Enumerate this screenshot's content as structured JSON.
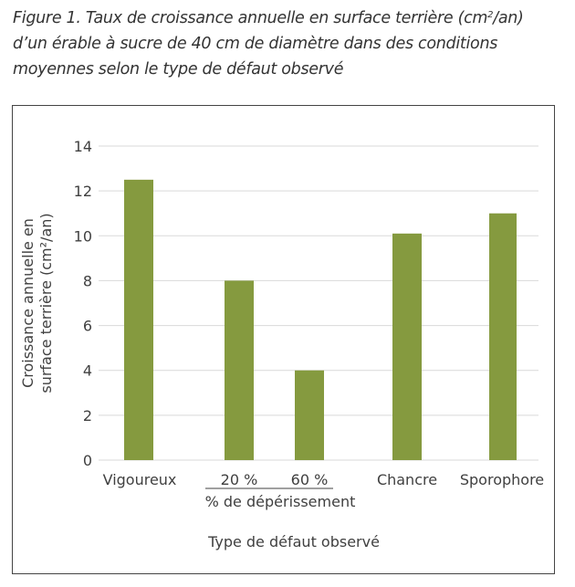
{
  "title": {
    "line1_a": "Figure 1. Taux de croissance annuelle en surface terrière (cm",
    "line1_sup": "2",
    "line1_b": "/an)",
    "line2": "d’un érable à sucre de 40 cm de diamètre dans des conditions",
    "line3": "moyennes selon le type de défaut observé"
  },
  "chart_data": {
    "type": "bar",
    "categories": [
      "Vigoureux",
      "20 %",
      "60 %",
      "Chancre",
      "Sporophore"
    ],
    "values": [
      12.5,
      8.0,
      4.0,
      10.1,
      11.0
    ],
    "group_label": "% de dépérissement",
    "group_members": [
      "20 %",
      "60 %"
    ],
    "xlabel": "Type de défaut observé",
    "ylabel_line1": "Croissance annuelle en",
    "ylabel_line2": "surface terrière (cm²/an)",
    "ylim": [
      0,
      14
    ],
    "yticks": [
      "0",
      "2",
      "4",
      "6",
      "8",
      "10",
      "12",
      "14"
    ],
    "grid": true,
    "bar_color": "#859a3f",
    "grid_color": "#d9d9d9"
  }
}
